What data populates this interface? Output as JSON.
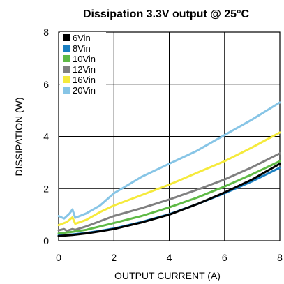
{
  "chart_data": {
    "type": "line",
    "title": "Dissipation 3.3V output @ 25°C",
    "xlabel": "OUTPUT CURRENT (A)",
    "ylabel": "DISSIPATION (W)",
    "xlim": [
      0,
      8
    ],
    "ylim": [
      0,
      8
    ],
    "xticks": [
      "0",
      "2",
      "4",
      "6",
      "8"
    ],
    "yticks": [
      "0",
      "2",
      "4",
      "6",
      "8"
    ],
    "grid": true,
    "legend_position": "top-left",
    "series": [
      {
        "name": "6Vin",
        "color": "#000000",
        "x": [
          0,
          0.5,
          1,
          1.5,
          2,
          3,
          4,
          5,
          6,
          7,
          8
        ],
        "y": [
          0.18,
          0.22,
          0.28,
          0.36,
          0.45,
          0.7,
          1.0,
          1.4,
          1.85,
          2.35,
          2.95
        ]
      },
      {
        "name": "8Vin",
        "color": "#1a7fc1",
        "x": [
          0,
          0.5,
          1,
          1.5,
          2,
          3,
          4,
          5,
          6,
          7,
          8
        ],
        "y": [
          0.2,
          0.24,
          0.3,
          0.38,
          0.47,
          0.72,
          1.02,
          1.4,
          1.82,
          2.28,
          2.8
        ]
      },
      {
        "name": "10Vin",
        "color": "#5fba46",
        "x": [
          0,
          0.5,
          1,
          1.5,
          2,
          3,
          4,
          5,
          6,
          7,
          8
        ],
        "y": [
          0.28,
          0.34,
          0.42,
          0.55,
          0.68,
          0.95,
          1.28,
          1.65,
          2.08,
          2.55,
          3.05
        ]
      },
      {
        "name": "12Vin",
        "color": "#808080",
        "x": [
          0,
          0.2,
          0.3,
          0.5,
          0.6,
          1,
          1.5,
          2,
          3,
          4,
          5,
          6,
          7,
          8
        ],
        "y": [
          0.4,
          0.45,
          0.38,
          0.45,
          0.42,
          0.55,
          0.75,
          0.95,
          1.25,
          1.58,
          1.95,
          2.35,
          2.82,
          3.35
        ]
      },
      {
        "name": "16Vin",
        "color": "#f5ea3c",
        "x": [
          0,
          0.3,
          0.5,
          0.6,
          1,
          1.5,
          2,
          3,
          4,
          5,
          6,
          7,
          8
        ],
        "y": [
          0.6,
          0.72,
          0.9,
          0.65,
          0.8,
          1.1,
          1.35,
          1.75,
          2.15,
          2.6,
          3.05,
          3.58,
          4.15
        ]
      },
      {
        "name": "20Vin",
        "color": "#87c5e6",
        "x": [
          0,
          0.2,
          0.4,
          0.5,
          0.6,
          1,
          1.5,
          2,
          3,
          4,
          5,
          6,
          7,
          8
        ],
        "y": [
          0.95,
          0.85,
          1.05,
          1.2,
          0.88,
          1.05,
          1.35,
          1.82,
          2.45,
          2.95,
          3.45,
          4.05,
          4.65,
          5.3
        ]
      }
    ]
  }
}
